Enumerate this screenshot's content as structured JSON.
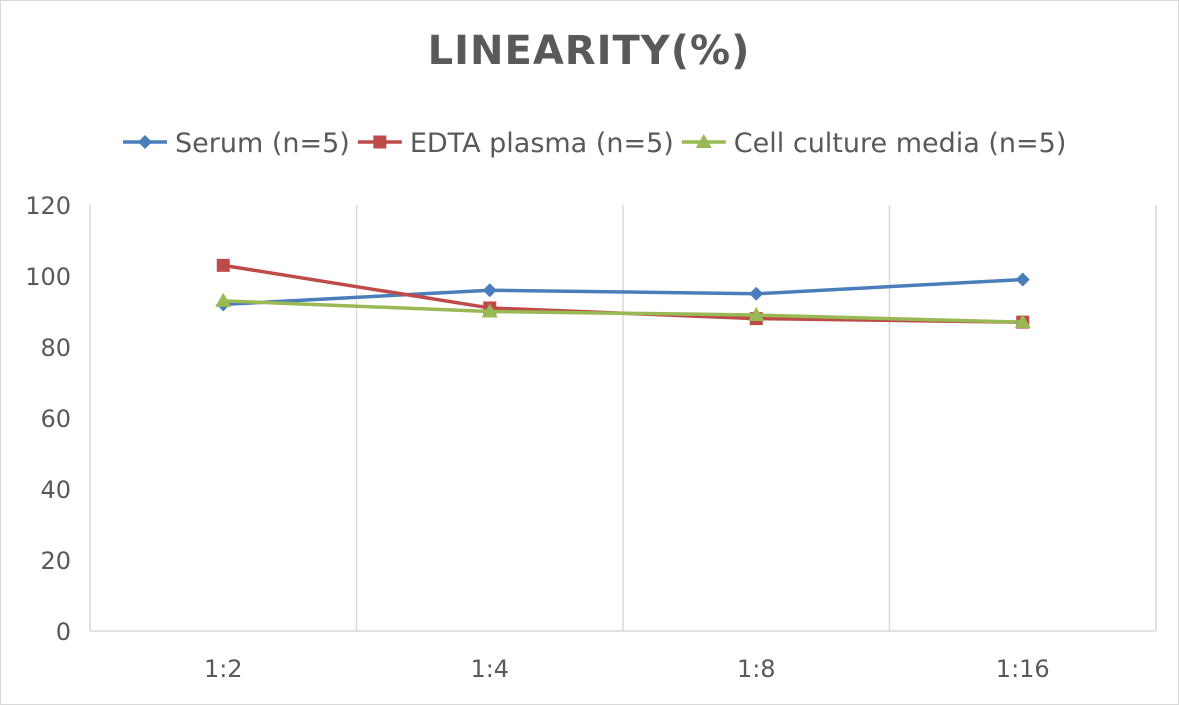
{
  "chart_data": {
    "type": "line",
    "title": "LINEARITY(%)",
    "xlabel": "",
    "ylabel": "",
    "categories": [
      "1:2",
      "1:4",
      "1:8",
      "1:16"
    ],
    "ylim": [
      0,
      120
    ],
    "yticks": [
      0,
      20,
      40,
      60,
      80,
      100,
      120
    ],
    "grid": "vertical",
    "legend": "top",
    "series": [
      {
        "name": "Serum (n=5)",
        "values": [
          92,
          96,
          95,
          99
        ],
        "color": "#4a7ebb",
        "marker": "diamond"
      },
      {
        "name": "EDTA plasma (n=5)",
        "values": [
          103,
          91,
          88,
          87
        ],
        "color": "#be4b48",
        "marker": "square"
      },
      {
        "name": "Cell culture media (n=5)",
        "values": [
          93,
          90,
          89,
          87
        ],
        "color": "#98b954",
        "marker": "triangle"
      }
    ]
  }
}
